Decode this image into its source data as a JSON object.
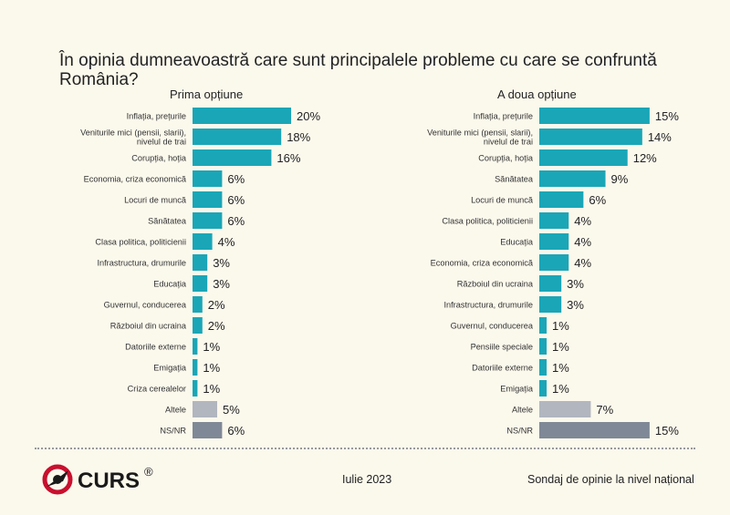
{
  "title": "În opinia dumneavoastră care sunt principalele probleme cu care se confruntă România?",
  "footer": {
    "date": "Iulie 2023",
    "subtitle": "Sondaj de opinie la nivel național",
    "logo_text": "CURS",
    "logo_mark": "®"
  },
  "colors": {
    "bar": "#1aa6b7",
    "other": "#b1b6bf",
    "nsnr": "#7f8896",
    "logo_red": "#c8102e",
    "text": "#222222"
  },
  "chart_data": [
    {
      "type": "bar",
      "orientation": "horizontal",
      "title": "Prima opțiune",
      "unit": "%",
      "categories": [
        "Inflația, prețurile",
        "Veniturile mici (pensii, slarii), nivelul de trai",
        "Corupția, hoția",
        "Economia, criza economică",
        "Locuri de muncă",
        "Sănătatea",
        "Clasa politica, politicienii",
        "Infrastructura, drumurile",
        "Educația",
        "Guvernul, conducerea",
        "Războiul din ucraina",
        "Datoriile externe",
        "Emigația",
        "Criza cerealelor",
        "Altele",
        "NS/NR"
      ],
      "values": [
        20,
        18,
        16,
        6,
        6,
        6,
        4,
        3,
        3,
        2,
        2,
        1,
        1,
        1,
        5,
        6
      ],
      "labels": [
        "20%",
        "18%",
        "16%",
        "6%",
        "6%",
        "6%",
        "4%",
        "3%",
        "3%",
        "2%",
        "2%",
        "1%",
        "1%",
        "1%",
        "5%",
        "6%"
      ],
      "bar_styles": [
        "main",
        "main",
        "main",
        "main",
        "main",
        "main",
        "main",
        "main",
        "main",
        "main",
        "main",
        "main",
        "main",
        "main",
        "other",
        "nsnr"
      ]
    },
    {
      "type": "bar",
      "orientation": "horizontal",
      "title": "A doua opțiune",
      "unit": "%",
      "categories": [
        "Inflația, prețurile",
        "Veniturile mici (pensii, slarii), nivelul de trai",
        "Corupția, hoția",
        "Sănătatea",
        "Locuri de muncă",
        "Clasa politica, politicienii",
        "Educația",
        "Economia, criza economică",
        "Războiul din ucraina",
        "Infrastructura, drumurile",
        "Guvernul, conducerea",
        "Pensiile speciale",
        "Datoriile externe",
        "Emigația",
        "Altele",
        "NS/NR"
      ],
      "values": [
        15,
        14,
        12,
        9,
        6,
        4,
        4,
        4,
        3,
        3,
        1,
        1,
        1,
        1,
        7,
        15
      ],
      "labels": [
        "15%",
        "14%",
        "12%",
        "9%",
        "6%",
        "4%",
        "4%",
        "4%",
        "3%",
        "3%",
        "1%",
        "1%",
        "1%",
        "1%",
        "7%",
        "15%"
      ],
      "bar_styles": [
        "main",
        "main",
        "main",
        "main",
        "main",
        "main",
        "main",
        "main",
        "main",
        "main",
        "main",
        "main",
        "main",
        "main",
        "other",
        "nsnr"
      ]
    }
  ]
}
